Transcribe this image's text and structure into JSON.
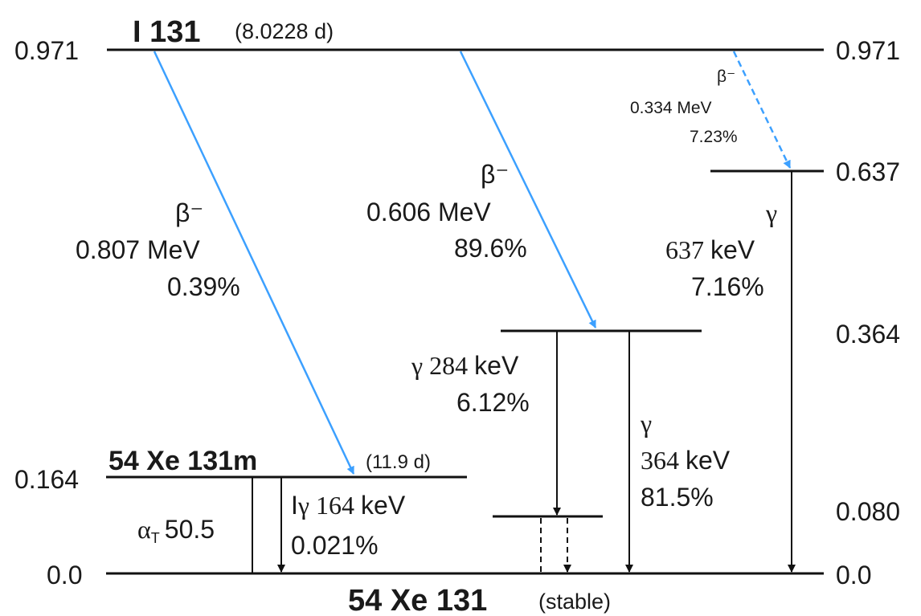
{
  "title": {
    "nuclide": "I 131",
    "halflife": "(8.0228 d)"
  },
  "levels": {
    "l971_left": "0.971",
    "l971_right": "0.971",
    "l637": "0.637",
    "l364": "0.364",
    "l080": "0.080",
    "l164": "0.164",
    "l0_left": "0.0",
    "l0_right": "0.0"
  },
  "metastable": {
    "name": "54 Xe 131m",
    "halflife": "(11.9 d)"
  },
  "ground": {
    "name": "54 Xe 131",
    "note": "(stable)"
  },
  "beta1": {
    "symbol": "β⁻",
    "energy": "0.807 MeV",
    "intensity": "0.39%"
  },
  "beta2": {
    "symbol": "β⁻",
    "energy": "0.606 MeV",
    "intensity": "89.6%"
  },
  "beta3": {
    "symbol": "β⁻",
    "energy": "0.334 MeV",
    "intensity": "7.23%"
  },
  "gamma637": {
    "symbol": "γ",
    "energy": "637",
    "unit": "keV",
    "intensity": "7.16%"
  },
  "gamma284": {
    "symbol": "γ",
    "energy": "284",
    "unit": "keV",
    "intensity": "6.12%"
  },
  "gamma364": {
    "symbol": "γ",
    "energy": "364",
    "unit": "keV",
    "intensity": "81.5%"
  },
  "gamma164": {
    "prefix": "I",
    "symbol": "γ",
    "energy": "164",
    "unit": "keV",
    "intensity": "0.021%"
  },
  "alpha": {
    "symbol": "α",
    "sub": "T",
    "value": "50.5"
  },
  "colors": {
    "beta_arrow": "#3ca0ff",
    "line": "#111111"
  }
}
